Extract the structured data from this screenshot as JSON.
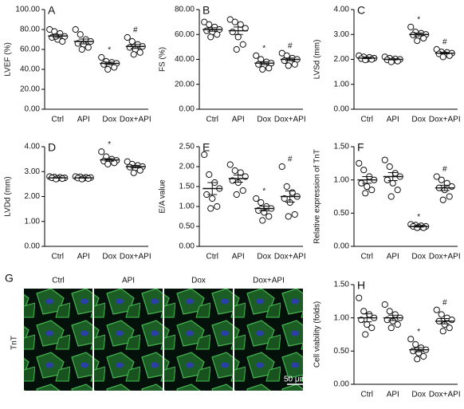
{
  "chart_data": [
    {
      "type": "dot",
      "panel": "A",
      "y_label": "LVEF (%)",
      "categories": [
        "Ctrl",
        "API",
        "Dox",
        "Dox+API"
      ],
      "points": [
        [
          80,
          78,
          76,
          73,
          72,
          70,
          68,
          73
        ],
        [
          80,
          75,
          70,
          68,
          66,
          65,
          62,
          60
        ],
        [
          52,
          48,
          47,
          46,
          45,
          44,
          42,
          40
        ],
        [
          72,
          68,
          65,
          63,
          62,
          60,
          57,
          55
        ]
      ],
      "means": [
        73.5,
        68,
        46,
        63
      ],
      "errors": [
        1.5,
        2.4,
        1.3,
        2.0
      ],
      "annotations": [
        null,
        null,
        "*",
        "#"
      ],
      "ylim": [
        0,
        100
      ],
      "yticks": [
        {
          "value": 0,
          "label": "0.00"
        },
        {
          "value": 20,
          "label": "20.00"
        },
        {
          "value": 40,
          "label": "40.00"
        },
        {
          "value": 60,
          "label": "60.00"
        },
        {
          "value": 80,
          "label": "80.00"
        },
        {
          "value": 100,
          "label": "100.00"
        }
      ]
    },
    {
      "type": "dot",
      "panel": "B",
      "y_label": "FS (%)",
      "categories": [
        "Ctrl",
        "API",
        "Dox",
        "Dox+API"
      ],
      "points": [
        [
          70,
          68,
          66,
          64,
          63,
          62,
          60,
          58
        ],
        [
          72,
          70,
          68,
          65,
          62,
          58,
          52,
          48
        ],
        [
          43,
          40,
          38,
          37,
          36,
          35,
          33,
          32
        ],
        [
          45,
          43,
          41,
          40,
          39,
          38,
          36,
          35
        ]
      ],
      "means": [
        64,
        63,
        37,
        40
      ],
      "errors": [
        1.4,
        3.0,
        1.2,
        1.1
      ],
      "annotations": [
        null,
        null,
        "*",
        "#"
      ],
      "ylim": [
        0,
        80
      ],
      "yticks": [
        {
          "value": 0,
          "label": "0.00"
        },
        {
          "value": 20,
          "label": "20.00"
        },
        {
          "value": 40,
          "label": "40.00"
        },
        {
          "value": 60,
          "label": "60.00"
        },
        {
          "value": 80,
          "label": "80.00"
        }
      ]
    },
    {
      "type": "dot",
      "panel": "C",
      "y_label": "LVSd (mm)",
      "categories": [
        "Ctrl",
        "API",
        "Dox",
        "Dox+API"
      ],
      "points": [
        [
          2.15,
          2.1,
          2.08,
          2.05,
          2.03,
          2.0,
          2.0,
          1.98
        ],
        [
          2.1,
          2.05,
          2.02,
          2.0,
          1.98,
          1.95,
          1.93,
          1.9
        ],
        [
          3.3,
          3.1,
          3.05,
          3.0,
          2.98,
          2.95,
          2.85,
          2.75
        ],
        [
          2.4,
          2.3,
          2.28,
          2.25,
          2.22,
          2.2,
          2.15,
          2.1
        ]
      ],
      "means": [
        2.05,
        2.0,
        3.0,
        2.25
      ],
      "errors": [
        0.02,
        0.02,
        0.06,
        0.03
      ],
      "annotations": [
        null,
        null,
        "*",
        "#"
      ],
      "ylim": [
        0,
        4
      ],
      "yticks": [
        {
          "value": 0,
          "label": "0.00"
        },
        {
          "value": 1,
          "label": "1.00"
        },
        {
          "value": 2,
          "label": "2.00"
        },
        {
          "value": 3,
          "label": "3.00"
        },
        {
          "value": 4,
          "label": "4.00"
        }
      ]
    },
    {
      "type": "dot",
      "panel": "D",
      "y_label": "LVDd (mm)",
      "categories": [
        "Ctrl",
        "API",
        "Dox",
        "Dox+API"
      ],
      "points": [
        [
          2.8,
          2.78,
          2.77,
          2.75,
          2.75,
          2.73,
          2.72,
          2.7
        ],
        [
          2.8,
          2.79,
          2.77,
          2.76,
          2.74,
          2.73,
          2.72,
          2.7
        ],
        [
          3.8,
          3.6,
          3.5,
          3.45,
          3.42,
          3.4,
          3.35,
          3.3
        ],
        [
          3.4,
          3.3,
          3.25,
          3.2,
          3.18,
          3.15,
          3.05,
          2.95
        ]
      ],
      "means": [
        2.75,
        2.75,
        3.47,
        3.2
      ],
      "errors": [
        0.01,
        0.01,
        0.05,
        0.05
      ],
      "annotations": [
        null,
        null,
        "*",
        null
      ],
      "ylim": [
        0,
        4
      ],
      "yticks": [
        {
          "value": 0,
          "label": "0.00"
        },
        {
          "value": 1,
          "label": "1.00"
        },
        {
          "value": 2,
          "label": "2.00"
        },
        {
          "value": 3,
          "label": "3.00"
        },
        {
          "value": 4,
          "label": "4.00"
        }
      ]
    },
    {
      "type": "dot",
      "panel": "E",
      "y_label": "E/A value",
      "categories": [
        "Ctrl",
        "API",
        "Dox",
        "Dox+API"
      ],
      "points": [
        [
          2.3,
          1.8,
          1.6,
          1.45,
          1.3,
          1.2,
          1.0,
          0.95
        ],
        [
          2.05,
          1.9,
          1.85,
          1.75,
          1.65,
          1.6,
          1.4,
          1.3
        ],
        [
          1.2,
          1.1,
          1.0,
          0.95,
          0.9,
          0.85,
          0.75,
          0.65
        ],
        [
          2.0,
          1.5,
          1.35,
          1.25,
          1.2,
          1.1,
          0.8,
          0.75
        ]
      ],
      "means": [
        1.45,
        1.7,
        0.95,
        1.25
      ],
      "errors": [
        0.15,
        0.09,
        0.06,
        0.14
      ],
      "annotations": [
        null,
        null,
        "*",
        "#"
      ],
      "ylim": [
        0,
        2.5
      ],
      "yticks": [
        {
          "value": 0,
          "label": "0.00"
        },
        {
          "value": 0.5,
          "label": "0.50"
        },
        {
          "value": 1,
          "label": "1.00"
        },
        {
          "value": 1.5,
          "label": "1.50"
        },
        {
          "value": 2,
          "label": "2.00"
        },
        {
          "value": 2.5,
          "label": "2.50"
        }
      ]
    },
    {
      "type": "dot",
      "panel": "F",
      "y_label": "Relative expression of TnT",
      "categories": [
        "Ctrl",
        "API",
        "Dox",
        "Dox+API"
      ],
      "points": [
        [
          1.25,
          1.15,
          1.05,
          1.0,
          0.95,
          0.9,
          0.85,
          0.8
        ],
        [
          1.3,
          1.2,
          1.1,
          1.05,
          1.0,
          0.95,
          0.85,
          0.75
        ],
        [
          0.33,
          0.32,
          0.31,
          0.3,
          0.3,
          0.29,
          0.28,
          0.28
        ],
        [
          1.05,
          1.0,
          0.95,
          0.9,
          0.88,
          0.85,
          0.75,
          0.7
        ]
      ],
      "means": [
        1.0,
        1.05,
        0.3,
        0.88
      ],
      "errors": [
        0.05,
        0.06,
        0.01,
        0.04
      ],
      "annotations": [
        null,
        null,
        "*",
        "#"
      ],
      "ylim": [
        0,
        1.5
      ],
      "yticks": [
        {
          "value": 0,
          "label": "0.00"
        },
        {
          "value": 0.5,
          "label": "0.50"
        },
        {
          "value": 1,
          "label": "1.00"
        },
        {
          "value": 1.5,
          "label": "1.50"
        }
      ]
    },
    {
      "type": "dot",
      "panel": "H",
      "y_label": "Cell viability (folds)",
      "categories": [
        "Ctrl",
        "API",
        "Dox",
        "Dox+API"
      ],
      "points": [
        [
          1.3,
          1.1,
          1.05,
          1.0,
          0.97,
          0.9,
          0.85,
          0.75
        ],
        [
          1.2,
          1.1,
          1.05,
          1.0,
          0.97,
          0.95,
          0.9,
          0.85
        ],
        [
          0.68,
          0.6,
          0.55,
          0.52,
          0.5,
          0.47,
          0.42,
          0.38
        ],
        [
          1.12,
          1.05,
          1.0,
          0.97,
          0.95,
          0.9,
          0.85,
          0.8
        ]
      ],
      "means": [
        1.0,
        1.0,
        0.52,
        0.95
      ],
      "errors": [
        0.06,
        0.04,
        0.03,
        0.04
      ],
      "annotations": [
        null,
        null,
        "*",
        "#"
      ],
      "ylim": [
        0,
        1.5
      ],
      "yticks": [
        {
          "value": 0,
          "label": "0.00"
        },
        {
          "value": 0.5,
          "label": "0.50"
        },
        {
          "value": 1,
          "label": "1.00"
        },
        {
          "value": 1.5,
          "label": "1.50"
        }
      ]
    }
  ],
  "image_panel": {
    "panel": "G",
    "row_label": "TnT",
    "columns": [
      "Ctrl",
      "API",
      "Dox",
      "Dox+API"
    ],
    "scale_bar": "50 μm"
  }
}
